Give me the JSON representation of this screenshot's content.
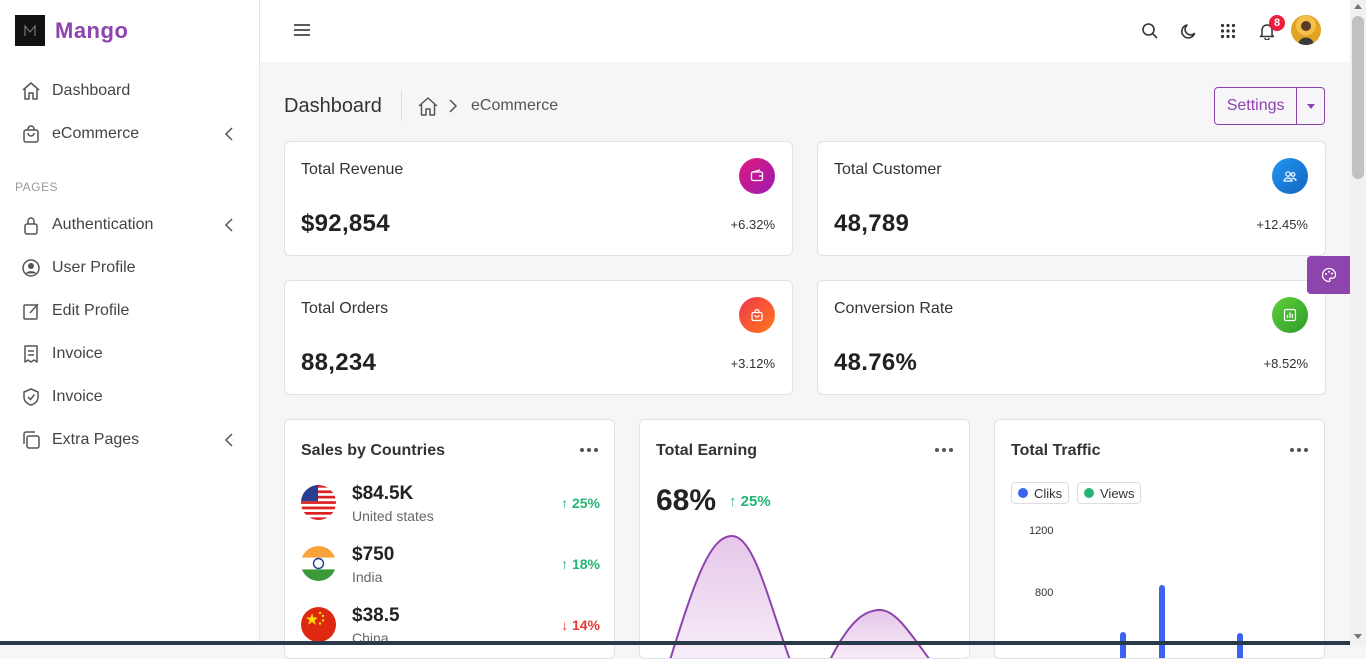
{
  "brand": {
    "name": "Mango"
  },
  "sidebar": {
    "items": [
      {
        "label": "Dashboard"
      },
      {
        "label": "eCommerce"
      }
    ],
    "section_label": "PAGES",
    "pages": [
      {
        "label": "Authentication"
      },
      {
        "label": "User Profile"
      },
      {
        "label": "Edit Profile"
      },
      {
        "label": "Invoice"
      },
      {
        "label": "Invoice"
      },
      {
        "label": "Extra Pages"
      }
    ]
  },
  "topbar": {
    "notification_count": "8"
  },
  "header": {
    "title": "Dashboard",
    "breadcrumb_current": "eCommerce",
    "settings_label": "Settings"
  },
  "stats": [
    {
      "title": "Total Revenue",
      "value": "$92,854",
      "change": "+6.32%",
      "color": "#c2188f"
    },
    {
      "title": "Total Customer",
      "value": "48,789",
      "change": "+12.45%",
      "color": "#1e88e5"
    },
    {
      "title": "Total Orders",
      "value": "88,234",
      "change": "+3.12%",
      "color": "#f0364e"
    },
    {
      "title": "Conversion Rate",
      "value": "48.76%",
      "change": "+8.52%",
      "color": "#3fb62e"
    }
  ],
  "sales": {
    "title": "Sales by Countries",
    "rows": [
      {
        "amount": "$84.5K",
        "country": "United states",
        "change": "25%",
        "trend": "up"
      },
      {
        "amount": "$750",
        "country": "India",
        "change": "18%",
        "trend": "up"
      },
      {
        "amount": "$38.5",
        "country": "China",
        "change": "14%",
        "trend": "down"
      }
    ]
  },
  "earning": {
    "title": "Total Earning",
    "percent": "68%",
    "change": "25%"
  },
  "traffic": {
    "title": "Total Traffic",
    "legend": [
      {
        "label": "Cliks",
        "color": "#3b63f0"
      },
      {
        "label": "Views",
        "color": "#22b573"
      }
    ],
    "y_ticks": [
      "1200",
      "800"
    ]
  },
  "colors": {
    "accent": "#8e44ad",
    "up": "#22b573",
    "down": "#e53935"
  }
}
